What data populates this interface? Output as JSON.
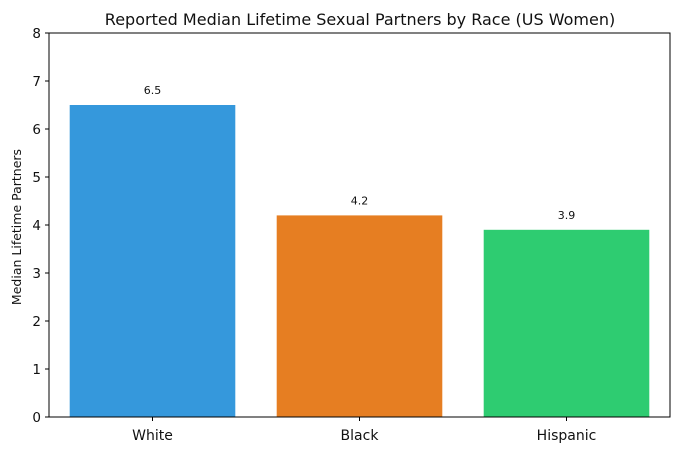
{
  "chart_data": {
    "type": "bar",
    "title": "Reported Median Lifetime Sexual Partners by Race (US Women)",
    "xlabel": "",
    "ylabel": "Median Lifetime Partners",
    "categories": [
      "White",
      "Black",
      "Hispanic"
    ],
    "values": [
      6.5,
      4.2,
      3.9
    ],
    "data_labels": [
      "6.5",
      "4.2",
      "3.9"
    ],
    "colors": [
      "#3598dc",
      "#e67e22",
      "#2ecc71"
    ],
    "ylim": [
      0,
      8
    ],
    "yticks": [
      "0",
      "1",
      "2",
      "3",
      "4",
      "5",
      "6",
      "7",
      "8"
    ],
    "grid": false,
    "legend": "none"
  }
}
